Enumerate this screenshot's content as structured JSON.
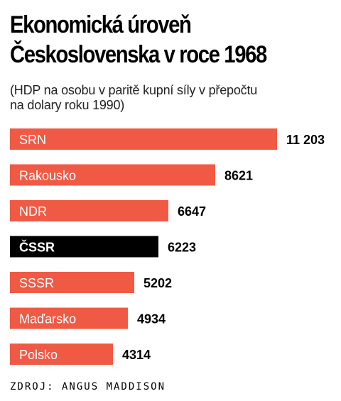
{
  "title_lines": [
    "Ekonomická úroveň",
    "Československa v roce 1968"
  ],
  "subtitle_lines": [
    "(HDP na osobu v paritě kupní síly v přepočtu",
    "na dolary roku 1990)"
  ],
  "source": "ZDROJ: ANGUS MADDISON",
  "colors": {
    "bar": "#f05a45",
    "highlight": "#000000",
    "bar_label": "#ffffff",
    "value_text": "#000000"
  },
  "chart_data": {
    "type": "bar",
    "orientation": "horizontal",
    "categories": [
      "SRN",
      "Rakousko",
      "NDR",
      "ČSSR",
      "SSSR",
      "Maďarsko",
      "Polsko"
    ],
    "values": [
      11203,
      8621,
      6647,
      6223,
      5202,
      4934,
      4314
    ],
    "value_labels": [
      "11 203",
      "8621",
      "6647",
      "6223",
      "5202",
      "4934",
      "4314"
    ],
    "highlight": "ČSSR",
    "xlim": [
      0,
      11203
    ]
  }
}
